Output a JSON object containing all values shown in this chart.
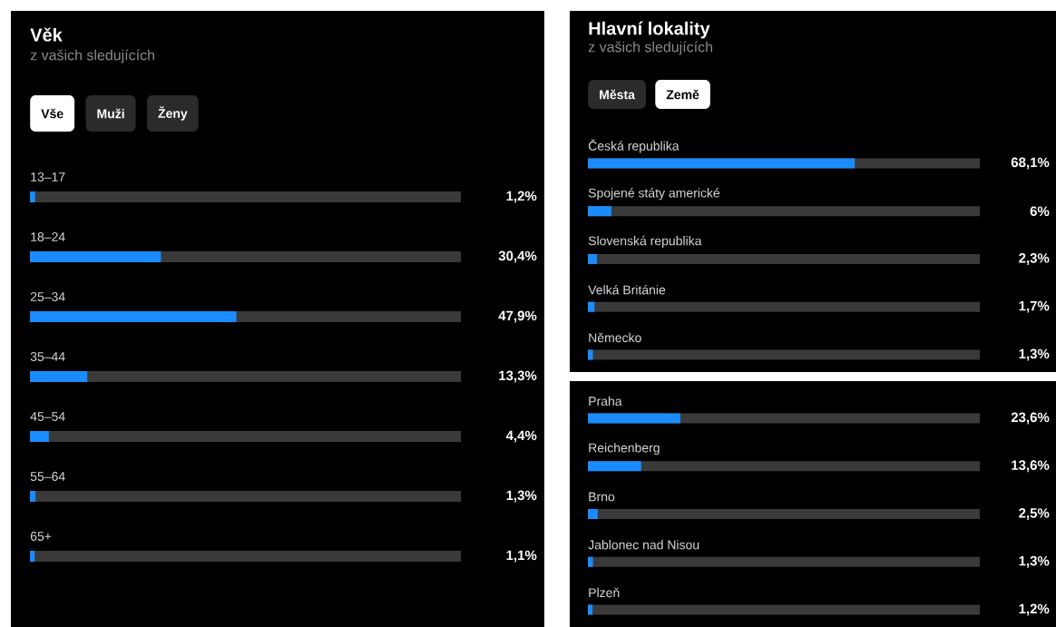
{
  "chart_data": [
    {
      "type": "bar",
      "orientation": "horizontal",
      "title": "Věk",
      "subtitle": "z vašich sledujících",
      "annotations": [
        "Vše",
        "Muži",
        "Ženy"
      ],
      "categories": [
        "13–17",
        "18–24",
        "25–34",
        "35–44",
        "45–54",
        "55–64",
        "65+"
      ],
      "values": [
        1.2,
        30.4,
        47.9,
        13.3,
        4.4,
        1.3,
        1.1
      ],
      "value_labels": [
        "1,2%",
        "30,4%",
        "47,9%",
        "13,3%",
        "4,4%",
        "1,3%",
        "1,1%"
      ],
      "color": "#1a8cff",
      "xlim": [
        0,
        100
      ],
      "tick_labels": "y"
    },
    {
      "type": "bar",
      "orientation": "horizontal",
      "title": "Hlavní lokality",
      "subtitle": "z vašich sledujících",
      "annotations": [
        "Města",
        "Země"
      ],
      "categories": [
        "Česká republika",
        "Spojené státy americké",
        "Slovenská republika",
        "Velká Británie",
        "Německo"
      ],
      "values": [
        68.1,
        6,
        2.3,
        1.7,
        1.3
      ],
      "value_labels": [
        "68,1%",
        "6%",
        "2,3%",
        "1,7%",
        "1,3%"
      ],
      "color": "#1a8cff",
      "xlim": [
        0,
        100
      ],
      "tick_labels": "y"
    },
    {
      "type": "bar",
      "orientation": "horizontal",
      "categories": [
        "Praha",
        "Reichenberg",
        "Brno",
        "Jablonec nad Nisou",
        "Plzeň"
      ],
      "values": [
        23.6,
        13.6,
        2.5,
        1.3,
        1.2
      ],
      "value_labels": [
        "23,6%",
        "13,6%",
        "2,5%",
        "1,3%",
        "1,2%"
      ],
      "color": "#1a8cff",
      "xlim": [
        0,
        100
      ],
      "tick_labels": "y"
    }
  ]
}
